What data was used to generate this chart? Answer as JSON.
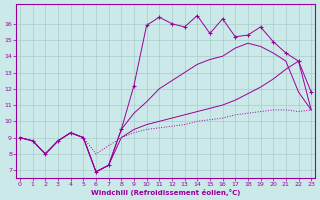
{
  "xlabel": "Windchill (Refroidissement éolien,°C)",
  "bg_color": "#cce9e9",
  "line_color": "#990099",
  "grid_color": "#aacccc",
  "ylim": [
    6.5,
    17.2
  ],
  "xlim": [
    -0.3,
    23.3
  ],
  "yticks": [
    7,
    8,
    9,
    10,
    11,
    12,
    13,
    14,
    15,
    16
  ],
  "xticks": [
    0,
    1,
    2,
    3,
    4,
    5,
    6,
    7,
    8,
    9,
    10,
    11,
    12,
    13,
    14,
    15,
    16,
    17,
    18,
    19,
    20,
    21,
    22,
    23
  ],
  "spiky_x": [
    0,
    1,
    2,
    3,
    4,
    5,
    6,
    7,
    8,
    9,
    10,
    11,
    12,
    13,
    14,
    15,
    16,
    17,
    18,
    19,
    20,
    21,
    22,
    23
  ],
  "spiky_y": [
    9.0,
    8.8,
    8.0,
    8.8,
    9.3,
    9.0,
    6.9,
    7.3,
    9.5,
    12.2,
    15.9,
    16.4,
    16.0,
    15.8,
    16.5,
    15.4,
    16.3,
    15.2,
    15.3,
    15.8,
    14.9,
    14.2,
    13.7,
    11.8
  ],
  "upper_smooth_x": [
    0,
    1,
    2,
    3,
    4,
    5,
    6,
    7,
    8,
    9,
    10,
    11,
    12,
    13,
    14,
    15,
    16,
    17,
    18,
    19,
    20,
    21,
    22,
    23
  ],
  "upper_smooth_y": [
    9.0,
    8.8,
    8.0,
    8.8,
    9.3,
    9.0,
    6.9,
    7.3,
    9.5,
    10.5,
    11.2,
    12.0,
    12.5,
    13.0,
    13.5,
    13.8,
    14.0,
    14.5,
    14.8,
    14.6,
    14.2,
    13.7,
    11.8,
    10.7
  ],
  "lower_smooth_x": [
    0,
    1,
    2,
    3,
    4,
    5,
    6,
    7,
    8,
    9,
    10,
    11,
    12,
    13,
    14,
    15,
    16,
    17,
    18,
    19,
    20,
    21,
    22,
    23
  ],
  "lower_smooth_y": [
    9.0,
    8.8,
    8.0,
    8.8,
    9.3,
    9.0,
    6.9,
    7.3,
    9.0,
    9.5,
    9.8,
    10.0,
    10.2,
    10.4,
    10.6,
    10.8,
    11.0,
    11.3,
    11.7,
    12.1,
    12.6,
    13.2,
    13.7,
    10.7
  ],
  "dotted_x": [
    0,
    1,
    2,
    3,
    4,
    5,
    6,
    7,
    8,
    9,
    10,
    11,
    12,
    13,
    14,
    15,
    16,
    17,
    18,
    19,
    20,
    21,
    22,
    23
  ],
  "dotted_y": [
    9.0,
    8.8,
    8.0,
    8.8,
    9.3,
    9.0,
    8.0,
    8.5,
    9.0,
    9.3,
    9.5,
    9.6,
    9.7,
    9.8,
    10.0,
    10.1,
    10.2,
    10.4,
    10.5,
    10.6,
    10.7,
    10.7,
    10.6,
    10.7
  ]
}
